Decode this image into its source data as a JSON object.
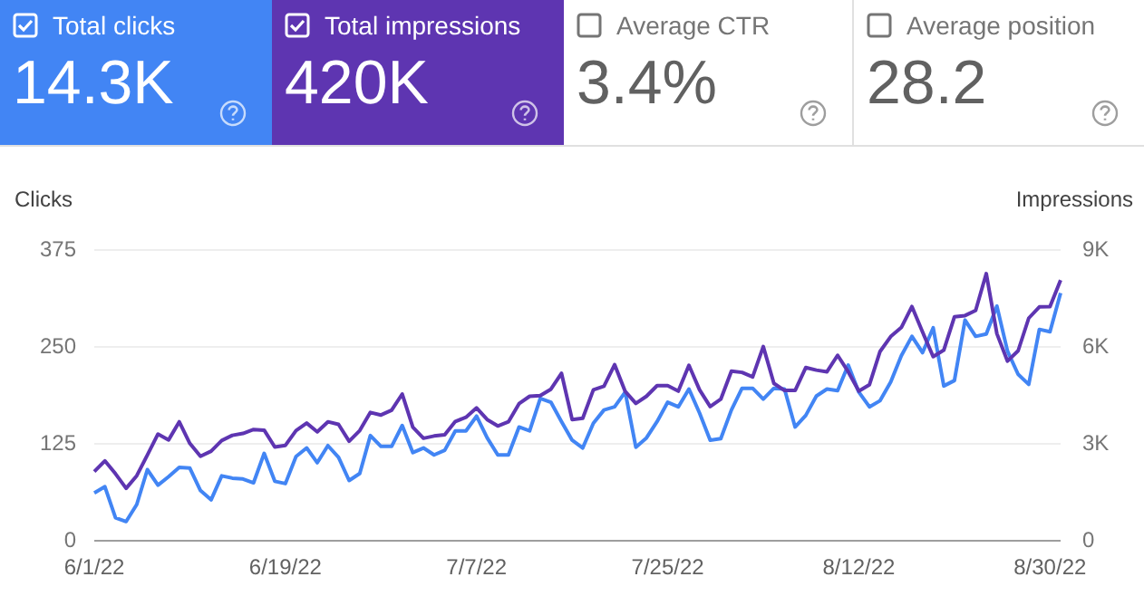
{
  "chart_data": [
    {
      "type": "other",
      "annotations": [
        "Total clicks",
        "14.3K",
        "Total impressions",
        "420K",
        "Average CTR",
        "3.4%",
        "Average position",
        "28.2"
      ]
    },
    {
      "type": "line",
      "ylabel": "Clicks",
      "y2label": "Impressions",
      "categories": [
        "6/1/22",
        null,
        null,
        null,
        null,
        null,
        null,
        null,
        null,
        null,
        null,
        null,
        null,
        null,
        null,
        null,
        null,
        null,
        "6/19/22",
        null,
        null,
        null,
        null,
        null,
        null,
        null,
        null,
        null,
        null,
        null,
        null,
        null,
        null,
        null,
        null,
        null,
        "7/7/22",
        null,
        null,
        null,
        null,
        null,
        null,
        null,
        null,
        null,
        null,
        null,
        null,
        null,
        null,
        null,
        null,
        null,
        "7/25/22",
        null,
        null,
        null,
        null,
        null,
        null,
        null,
        null,
        null,
        null,
        null,
        null,
        null,
        null,
        null,
        null,
        null,
        "8/12/22",
        null,
        null,
        null,
        null,
        null,
        null,
        null,
        null,
        null,
        null,
        null,
        null,
        null,
        null,
        null,
        null,
        null,
        "8/30/22",
        null
      ],
      "series": [
        {
          "color": "#4285f4",
          "values": [
            62,
            70,
            30,
            25,
            47,
            92,
            72,
            83,
            95,
            94,
            65,
            53,
            84,
            81,
            80,
            75,
            113,
            77,
            74,
            109,
            120,
            101,
            123,
            108,
            78,
            87,
            136,
            122,
            122,
            149,
            114,
            120,
            111,
            117,
            142,
            142,
            161,
            133,
            111,
            111,
            147,
            142,
            184,
            179,
            154,
            130,
            120,
            152,
            169,
            173,
            192,
            121,
            133,
            154,
            179,
            173,
            196,
            165,
            130,
            132,
            169,
            197,
            197,
            183,
            197,
            196,
            147,
            162,
            187,
            196,
            194,
            227,
            192,
            173,
            181,
            205,
            239,
            264,
            243,
            275,
            200,
            207,
            285,
            264,
            267,
            303,
            245,
            215,
            202,
            273,
            270,
            320
          ]
        },
        {
          "color": "#5e35b1",
          "axis": "y2",
          "values": [
            2150,
            2480,
            2080,
            1630,
            2020,
            2660,
            3310,
            3130,
            3690,
            3020,
            2620,
            2780,
            3110,
            3270,
            3330,
            3450,
            3430,
            2910,
            2960,
            3420,
            3650,
            3380,
            3690,
            3610,
            3090,
            3420,
            3980,
            3900,
            4050,
            4550,
            3520,
            3180,
            3250,
            3290,
            3700,
            3830,
            4120,
            3760,
            3560,
            3690,
            4250,
            4480,
            4500,
            4700,
            5190,
            3760,
            3800,
            4680,
            4790,
            5460,
            4630,
            4260,
            4480,
            4810,
            4810,
            4640,
            5440,
            4680,
            4160,
            4390,
            5260,
            5220,
            5080,
            6020,
            4880,
            4660,
            4660,
            5370,
            5290,
            5240,
            5750,
            5240,
            4640,
            4840,
            5870,
            6330,
            6610,
            7260,
            6470,
            5710,
            5910,
            6940,
            6980,
            7140,
            8280,
            6420,
            5570,
            5890,
            6900,
            7250,
            7260,
            8080
          ]
        }
      ],
      "ylim": [
        0,
        375
      ],
      "yticks": [
        0,
        125,
        250,
        375
      ],
      "y2lim": [
        0,
        9000
      ],
      "y2ticks": [
        0,
        {
          "value": 3000,
          "label": "3K"
        },
        {
          "value": 6000,
          "label": "6K"
        },
        {
          "value": 9000,
          "label": "9K"
        }
      ],
      "grid": "y",
      "legend": false
    }
  ]
}
